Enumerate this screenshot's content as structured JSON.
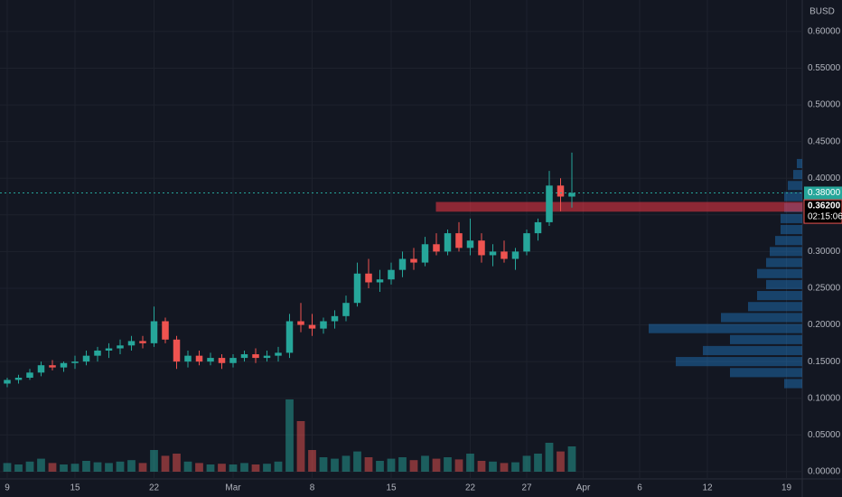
{
  "chart_data": {
    "type": "candlestick",
    "currency": "BUSD",
    "x": [
      0,
      1,
      2,
      3,
      4,
      5,
      6,
      7,
      8,
      9,
      10,
      11,
      12,
      13,
      14,
      15,
      16,
      17,
      18,
      19,
      20,
      21,
      22,
      23,
      24,
      25,
      26,
      27,
      28,
      29,
      30,
      31,
      32,
      33,
      34,
      35,
      36,
      37,
      38,
      39,
      40,
      41,
      42,
      43,
      44,
      45,
      46,
      47,
      48,
      49,
      50
    ],
    "open": [
      0.12,
      0.125,
      0.128,
      0.135,
      0.145,
      0.142,
      0.148,
      0.15,
      0.158,
      0.165,
      0.168,
      0.172,
      0.178,
      0.175,
      0.205,
      0.18,
      0.15,
      0.158,
      0.15,
      0.155,
      0.148,
      0.155,
      0.16,
      0.155,
      0.158,
      0.162,
      0.205,
      0.2,
      0.195,
      0.205,
      0.212,
      0.23,
      0.27,
      0.258,
      0.262,
      0.275,
      0.29,
      0.285,
      0.31,
      0.3,
      0.325,
      0.305,
      0.315,
      0.295,
      0.3,
      0.29,
      0.3,
      0.325,
      0.34,
      0.39,
      0.375
    ],
    "high": [
      0.128,
      0.132,
      0.14,
      0.15,
      0.152,
      0.15,
      0.158,
      0.165,
      0.17,
      0.175,
      0.18,
      0.185,
      0.185,
      0.225,
      0.21,
      0.185,
      0.165,
      0.165,
      0.162,
      0.16,
      0.16,
      0.165,
      0.168,
      0.165,
      0.17,
      0.215,
      0.23,
      0.215,
      0.21,
      0.22,
      0.24,
      0.285,
      0.29,
      0.275,
      0.285,
      0.3,
      0.305,
      0.32,
      0.325,
      0.33,
      0.34,
      0.345,
      0.325,
      0.31,
      0.315,
      0.305,
      0.33,
      0.345,
      0.41,
      0.4,
      0.435
    ],
    "low": [
      0.115,
      0.12,
      0.125,
      0.13,
      0.138,
      0.136,
      0.14,
      0.145,
      0.15,
      0.155,
      0.16,
      0.165,
      0.168,
      0.17,
      0.175,
      0.14,
      0.142,
      0.145,
      0.145,
      0.14,
      0.142,
      0.15,
      0.148,
      0.15,
      0.15,
      0.155,
      0.19,
      0.185,
      0.188,
      0.195,
      0.205,
      0.225,
      0.25,
      0.245,
      0.255,
      0.265,
      0.275,
      0.28,
      0.295,
      0.295,
      0.3,
      0.295,
      0.285,
      0.28,
      0.285,
      0.275,
      0.295,
      0.315,
      0.335,
      0.355,
      0.36
    ],
    "close": [
      0.125,
      0.128,
      0.135,
      0.145,
      0.142,
      0.148,
      0.15,
      0.158,
      0.165,
      0.168,
      0.172,
      0.178,
      0.175,
      0.205,
      0.18,
      0.15,
      0.158,
      0.15,
      0.155,
      0.148,
      0.155,
      0.16,
      0.155,
      0.158,
      0.162,
      0.205,
      0.2,
      0.195,
      0.205,
      0.212,
      0.23,
      0.27,
      0.258,
      0.262,
      0.275,
      0.29,
      0.285,
      0.31,
      0.3,
      0.325,
      0.305,
      0.315,
      0.295,
      0.3,
      0.29,
      0.3,
      0.325,
      0.34,
      0.39,
      0.375,
      0.38
    ],
    "volume": [
      12,
      10,
      14,
      18,
      12,
      10,
      11,
      15,
      13,
      12,
      14,
      16,
      12,
      30,
      22,
      25,
      14,
      12,
      10,
      11,
      10,
      12,
      10,
      11,
      14,
      100,
      70,
      30,
      20,
      18,
      22,
      28,
      20,
      15,
      18,
      20,
      16,
      22,
      18,
      20,
      17,
      25,
      15,
      14,
      12,
      13,
      22,
      25,
      40,
      28,
      35
    ],
    "volume_ylim": [
      0,
      100
    ],
    "up_color": "#26a69a",
    "down_color": "#ef5350",
    "xlim": [
      -0.64,
      70.4
    ],
    "xticks": [
      {
        "value": 0,
        "label": "9"
      },
      {
        "value": 6,
        "label": "15"
      },
      {
        "value": 13,
        "label": "22"
      },
      {
        "value": 20,
        "label": "Mar"
      },
      {
        "value": 27,
        "label": "8"
      },
      {
        "value": 34,
        "label": "15"
      },
      {
        "value": 41,
        "label": "22"
      },
      {
        "value": 46,
        "label": "27"
      },
      {
        "value": 51,
        "label": "Apr"
      },
      {
        "value": 56,
        "label": "6"
      },
      {
        "value": 62,
        "label": "12"
      },
      {
        "value": 69,
        "label": "19"
      }
    ],
    "ylim": [
      -0.01,
      0.643
    ],
    "yticks": [
      {
        "value": 0,
        "label": "0.00000"
      },
      {
        "value": 0.05,
        "label": "0.05000"
      },
      {
        "value": 0.1,
        "label": "0.10000"
      },
      {
        "value": 0.15,
        "label": "0.15000"
      },
      {
        "value": 0.2,
        "label": "0.20000"
      },
      {
        "value": 0.25,
        "label": "0.25000"
      },
      {
        "value": 0.3,
        "label": "0.30000"
      },
      {
        "value": 0.35,
        "label": "0.35000"
      },
      {
        "value": 0.4,
        "label": "0.40000"
      },
      {
        "value": 0.45,
        "label": "0.45000"
      },
      {
        "value": 0.5,
        "label": "0.50000"
      },
      {
        "value": 0.55,
        "label": "0.55000"
      },
      {
        "value": 0.6,
        "label": "0.60000"
      }
    ],
    "grid": true,
    "zone": {
      "start": 38,
      "low": 0.355,
      "high": 0.367,
      "color": "#f23645"
    },
    "last_price": {
      "value": 0.38,
      "label": "0.38000"
    },
    "marker_price": {
      "value": 0.362,
      "label": "0.36200"
    },
    "countdown": "02:15:06",
    "profile": {
      "levels": [
        0.12,
        0.135,
        0.15,
        0.165,
        0.18,
        0.195,
        0.21,
        0.225,
        0.24,
        0.255,
        0.27,
        0.285,
        0.3,
        0.315,
        0.33,
        0.345,
        0.36,
        0.375,
        0.39,
        0.405,
        0.42
      ],
      "values": [
        10,
        40,
        70,
        55,
        40,
        85,
        45,
        30,
        25,
        20,
        25,
        20,
        18,
        15,
        12,
        12,
        10,
        10,
        8,
        5,
        3
      ],
      "xlim": [
        0,
        100
      ],
      "color": "#2196f3"
    }
  }
}
